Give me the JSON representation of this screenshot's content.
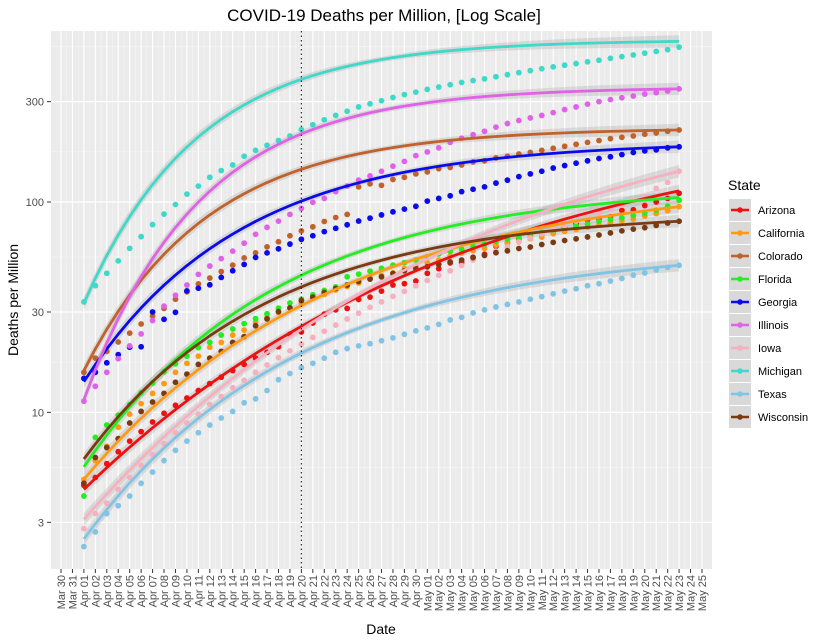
{
  "chart_data": {
    "type": "scatter",
    "title": "COVID-19 Deaths per Million, [Log Scale]",
    "xlabel": "Date",
    "ylabel": "Deaths per Million",
    "y_scale": "log",
    "ylim": [
      1.8,
      650
    ],
    "y_ticks": [
      3,
      10,
      30,
      100,
      300
    ],
    "x_range": [
      "2020-03-30",
      "2020-05-25"
    ],
    "x_tick_labels": [
      "Mar 30",
      "Mar 31",
      "Apr 01",
      "Apr 02",
      "Apr 03",
      "Apr 04",
      "Apr 05",
      "Apr 06",
      "Apr 07",
      "Apr 08",
      "Apr 09",
      "Apr 10",
      "Apr 11",
      "Apr 12",
      "Apr 13",
      "Apr 14",
      "Apr 15",
      "Apr 16",
      "Apr 17",
      "Apr 18",
      "Apr 19",
      "Apr 20",
      "Apr 21",
      "Apr 22",
      "Apr 23",
      "Apr 24",
      "Apr 25",
      "Apr 26",
      "Apr 27",
      "Apr 28",
      "Apr 29",
      "Apr 30",
      "May 01",
      "May 02",
      "May 03",
      "May 04",
      "May 05",
      "May 06",
      "May 07",
      "May 08",
      "May 09",
      "May 10",
      "May 11",
      "May 12",
      "May 13",
      "May 14",
      "May 15",
      "May 16",
      "May 17",
      "May 18",
      "May 19",
      "May 20",
      "May 21",
      "May 22",
      "May 23",
      "May 24",
      "May 25"
    ],
    "reference_line": {
      "date": "2020-04-20",
      "style": "dotted"
    },
    "grid": true,
    "legend": {
      "title": "State",
      "placement": "right"
    },
    "x_dates": [
      "2020-04-01",
      "2020-04-02",
      "2020-04-03",
      "2020-04-04",
      "2020-04-05",
      "2020-04-06",
      "2020-04-07",
      "2020-04-08",
      "2020-04-09",
      "2020-04-10",
      "2020-04-11",
      "2020-04-12",
      "2020-04-13",
      "2020-04-14",
      "2020-04-15",
      "2020-04-16",
      "2020-04-17",
      "2020-04-18",
      "2020-04-19",
      "2020-04-20",
      "2020-04-21",
      "2020-04-22",
      "2020-04-23",
      "2020-04-24",
      "2020-04-25",
      "2020-04-26",
      "2020-04-27",
      "2020-04-28",
      "2020-04-29",
      "2020-04-30",
      "2020-05-01",
      "2020-05-02",
      "2020-05-03",
      "2020-05-04",
      "2020-05-05",
      "2020-05-06",
      "2020-05-07",
      "2020-05-08",
      "2020-05-09",
      "2020-05-10",
      "2020-05-11",
      "2020-05-12",
      "2020-05-13",
      "2020-05-14",
      "2020-05-15",
      "2020-05-16",
      "2020-05-17",
      "2020-05-18",
      "2020-05-19",
      "2020-05-20",
      "2020-05-21",
      "2020-05-22",
      "2020-05-23"
    ],
    "series": [
      {
        "name": "Arizona",
        "color": "#ee1111",
        "start": 4.3,
        "end": 113,
        "k": 0.22,
        "values": [
          4.5,
          4.9,
          5.7,
          6.5,
          7.3,
          8.1,
          9.0,
          9.9,
          10.8,
          11.7,
          12.7,
          13.7,
          14.7,
          15.8,
          16.9,
          18.1,
          19.3,
          20.5,
          23.5,
          24.1,
          26.6,
          29.3,
          30.7,
          31.2,
          34.4,
          35.3,
          37.7,
          40.3,
          40.9,
          42.1,
          45.8,
          48.2,
          51.3,
          51.6,
          54.6,
          56.4,
          61.6,
          64.0,
          66.5,
          69.7,
          70.6,
          72.5,
          75.6,
          78.8,
          82.3,
          82.9,
          85.2,
          91.2,
          91.8,
          96.2,
          100,
          104,
          110
        ]
      },
      {
        "name": "California",
        "color": "#ff9a14",
        "start": 4.8,
        "end": 95,
        "k": 0.34,
        "values": [
          4.8,
          5.9,
          6.9,
          8.5,
          9.8,
          11.0,
          12.3,
          13.7,
          15.5,
          17.1,
          18.5,
          20.4,
          21.5,
          23.3,
          24.6,
          26.8,
          28.3,
          29.8,
          31.2,
          33.1,
          35.0,
          36.4,
          38.2,
          39.6,
          41.2,
          43.5,
          44.8,
          46.0,
          48.3,
          49.7,
          51.5,
          53.0,
          55.3,
          57.2,
          58.7,
          60.1,
          62.4,
          64.2,
          65.4,
          66.9,
          68.1,
          70.7,
          72.4,
          74.0,
          76.0,
          77.7,
          79.4,
          81.3,
          83.0,
          85.7,
          88.1,
          90.9,
          95.0
        ]
      },
      {
        "name": "Colorado",
        "color": "#c0622b",
        "start": 15.8,
        "end": 220,
        "k": 0.7,
        "values": [
          15.5,
          18.1,
          19.5,
          21.6,
          23.8,
          26.3,
          28.7,
          31.2,
          34.5,
          37.4,
          40.8,
          43.5,
          46.7,
          50.1,
          54.2,
          57.3,
          61.2,
          64.7,
          69.1,
          72.9,
          76.2,
          80.8,
          84.4,
          87.3,
          118,
          122,
          120,
          128,
          131,
          136,
          139,
          144,
          146,
          150,
          155,
          157,
          162,
          165,
          169,
          172,
          176,
          180,
          184,
          188,
          192,
          196,
          200,
          203,
          206,
          210,
          213,
          217,
          220
        ]
      },
      {
        "name": "Florida",
        "color": "#22ee22",
        "start": 5.5,
        "end": 105,
        "k": 0.45,
        "values": [
          4.0,
          7.6,
          8.7,
          9.7,
          10.9,
          12.4,
          13.8,
          15.6,
          17.0,
          18.5,
          20.3,
          21.5,
          23.3,
          24.9,
          26.4,
          27.9,
          29.4,
          31.3,
          33.1,
          34.5,
          36.2,
          38.0,
          39.5,
          44.1,
          45.4,
          46.9,
          48.4,
          50.1,
          51.5,
          53.0,
          55.0,
          56.6,
          58.3,
          59.6,
          61.5,
          63.0,
          64.9,
          66.5,
          68.1,
          69.9,
          71.6,
          73.5,
          75.1,
          76.8,
          78.6,
          80.8,
          82.4,
          84.1,
          86.2,
          88.6,
          91.3,
          95.5,
          102
        ]
      },
      {
        "name": "Georgia",
        "color": "#0a0aee",
        "start": 14.0,
        "end": 183,
        "k": 0.55,
        "values": [
          14.5,
          15.5,
          17.2,
          18.8,
          20.4,
          20.5,
          30.0,
          27.7,
          29.9,
          37.8,
          38.9,
          40.4,
          43.8,
          47.1,
          50.5,
          54.5,
          57.3,
          59.9,
          63.1,
          66.5,
          69.1,
          72.3,
          75.0,
          77.9,
          81.2,
          83.8,
          86.8,
          89.8,
          92.5,
          95.4,
          101,
          104,
          107,
          112,
          115,
          118,
          123,
          127,
          132,
          136,
          140,
          145,
          149,
          153,
          157,
          161,
          164,
          168,
          172,
          175,
          177,
          181,
          183
        ]
      },
      {
        "name": "Illinois",
        "color": "#e062e6",
        "start": 11.5,
        "end": 345,
        "k": 0.75,
        "values": [
          11.3,
          13.3,
          15.5,
          18.0,
          20.7,
          23.6,
          27.3,
          32.0,
          36.0,
          40.3,
          45.3,
          49.6,
          53.8,
          58.4,
          63.7,
          70.2,
          75.8,
          81.1,
          87.3,
          93.2,
          99.6,
          104,
          112,
          119,
          127,
          133,
          140,
          148,
          156,
          166,
          173,
          181,
          192,
          201,
          209,
          217,
          227,
          236,
          244,
          251,
          258,
          266,
          275,
          283,
          292,
          300,
          307,
          313,
          319,
          326,
          331,
          337,
          345
        ]
      },
      {
        "name": "Iowa",
        "color": "#f6b0c0",
        "start": 3.1,
        "end": 140,
        "k": 0.22,
        "values": [
          2.8,
          3.3,
          3.7,
          4.3,
          4.9,
          5.6,
          6.3,
          7.1,
          8.0,
          8.9,
          9.8,
          10.9,
          11.9,
          13.1,
          14.2,
          15.5,
          16.8,
          18.2,
          19.6,
          21.1,
          22.7,
          24.3,
          26.0,
          27.8,
          29.6,
          31.6,
          33.5,
          35.6,
          37.6,
          40.0,
          42.4,
          44.8,
          47.1,
          49.9,
          53.0,
          55.6,
          58.4,
          61.2,
          64.5,
          67.4,
          70.6,
          73.9,
          77.4,
          81.1,
          84.5,
          88.3,
          92.3,
          96.5,
          101,
          106,
          116,
          124,
          140
        ]
      },
      {
        "name": "Michigan",
        "color": "#3fd9c9",
        "start": 33,
        "end": 580,
        "k": 0.75,
        "values": [
          33.5,
          40.0,
          45.8,
          52.5,
          60.2,
          68.4,
          78.1,
          87.6,
          97.3,
          109,
          119,
          131,
          141,
          150,
          165,
          176,
          186,
          196,
          206,
          221,
          233,
          246,
          258,
          270,
          283,
          293,
          303,
          314,
          324,
          333,
          343,
          352,
          361,
          370,
          378,
          385,
          394,
          403,
          412,
          421,
          430,
          439,
          447,
          455,
          464,
          472,
          482,
          491,
          500,
          510,
          520,
          530,
          545
        ]
      },
      {
        "name": "Texas",
        "color": "#82c4e4",
        "start": 2.5,
        "end": 50,
        "k": 0.4,
        "values": [
          2.3,
          2.7,
          3.3,
          3.6,
          4.0,
          4.6,
          5.2,
          5.9,
          6.6,
          7.3,
          8.0,
          8.7,
          9.4,
          10.1,
          11.1,
          11.6,
          12.7,
          14.3,
          15.3,
          16.3,
          17.1,
          18.1,
          19.3,
          20.1,
          20.7,
          21.2,
          21.9,
          22.6,
          23.5,
          24.4,
          25.2,
          26.2,
          27.5,
          28.3,
          29.7,
          30.7,
          31.7,
          32.6,
          33.5,
          34.5,
          35.5,
          36.6,
          37.7,
          38.7,
          40.0,
          40.9,
          42.1,
          43.3,
          44.9,
          46.0,
          47.5,
          48.9,
          50.0
        ]
      },
      {
        "name": "Wisconsin",
        "color": "#7a3a12",
        "start": 6.0,
        "end": 81,
        "k": 0.47,
        "values": [
          4.6,
          6.1,
          6.8,
          7.5,
          8.9,
          10.1,
          11.2,
          12.3,
          13.9,
          15.2,
          16.9,
          18.1,
          19.5,
          21.5,
          22.9,
          25.8,
          27.8,
          30.1,
          31.4,
          34.0,
          35.3,
          37.1,
          38.8,
          40.3,
          41.9,
          43.0,
          44.1,
          45.7,
          47.1,
          48.3,
          49.2,
          50.5,
          51.9,
          53.0,
          54.4,
          55.8,
          57.4,
          58.6,
          60.1,
          61.1,
          62.8,
          64.3,
          65.6,
          66.8,
          68.2,
          69.7,
          71.3,
          72.9,
          74.3,
          75.5,
          77.4,
          79.5,
          81.0
        ]
      }
    ]
  }
}
